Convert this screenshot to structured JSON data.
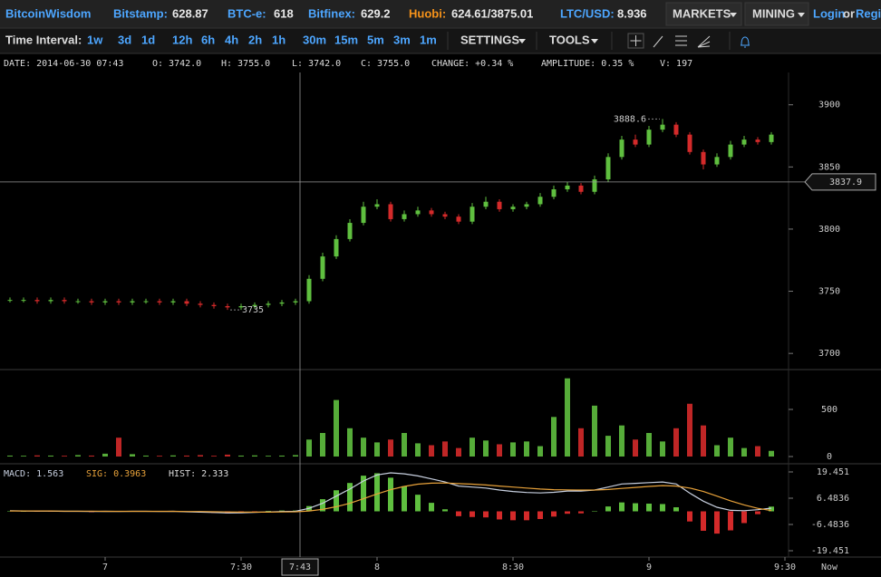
{
  "header": {
    "brand": "BitcoinWisdom",
    "tickers": [
      {
        "name": "Bitstamp:",
        "price": "628.87"
      },
      {
        "name": "BTC-e:",
        "price": "618"
      },
      {
        "name": "Bitfinex:",
        "price": "629.2"
      },
      {
        "name": "Huobi:",
        "price": "624.61/3875.01"
      },
      {
        "name": "LTC/USD:",
        "price": "8.936"
      }
    ],
    "menus": [
      "MARKETS",
      "MINING"
    ],
    "login": "Login",
    "or": "or",
    "register": "Regis"
  },
  "toolbar": {
    "label": "Time Interval:",
    "intervals": [
      "1w",
      "3d",
      "1d",
      "12h",
      "6h",
      "4h",
      "2h",
      "1h",
      "30m",
      "15m",
      "5m",
      "3m",
      "1m"
    ],
    "settings": "SETTINGS",
    "tools": "TOOLS"
  },
  "info": [
    "DATE: 2014-06-30 07:43",
    "O: 3742.0",
    "H: 3755.0",
    "L: 3742.0",
    "C: 3755.0",
    "CHANGE: +0.34 %",
    "AMPLITUDE: 0.35 %",
    "V: 197"
  ],
  "chart_data": [
    {
      "type": "candlestick",
      "up_color": "#5fbf3f",
      "down_color": "#d42a2a",
      "x": [
        399,
        402,
        405,
        408,
        411,
        414,
        417,
        420,
        423,
        426,
        429,
        432,
        435,
        438,
        441,
        444,
        447,
        450,
        453,
        456,
        459,
        462,
        465,
        468,
        471,
        474,
        477,
        480,
        483,
        486,
        489,
        492,
        495,
        498,
        501,
        504,
        507,
        510,
        513,
        516,
        519,
        522,
        525,
        528,
        531,
        534,
        537,
        540,
        543,
        546,
        549,
        552,
        555,
        558,
        561,
        564,
        567
      ],
      "open": [
        3743,
        3743,
        3743,
        3742,
        3743,
        3742,
        3742,
        3741,
        3742,
        3741,
        3742,
        3742,
        3741,
        3742,
        3740,
        3739,
        3738,
        3737,
        3738,
        3739,
        3740,
        3741,
        3742,
        3760,
        3778,
        3792,
        3805,
        3818,
        3820,
        3808,
        3812,
        3815,
        3812,
        3810,
        3806,
        3818,
        3822,
        3816,
        3818,
        3820,
        3826,
        3832,
        3835,
        3830,
        3840,
        3858,
        3872,
        3868,
        3880,
        3884,
        3876,
        3862,
        3852,
        3858,
        3868,
        3872,
        3870
      ],
      "high": [
        3745,
        3745,
        3745,
        3745,
        3745,
        3744,
        3744,
        3744,
        3744,
        3744,
        3744,
        3744,
        3744,
        3744,
        3742,
        3741,
        3740,
        3740,
        3741,
        3742,
        3743,
        3744,
        3763,
        3781,
        3795,
        3808,
        3822,
        3824,
        3822,
        3815,
        3818,
        3817,
        3814,
        3812,
        3821,
        3826,
        3824,
        3820,
        3822,
        3829,
        3835,
        3838,
        3837,
        3843,
        3861,
        3875,
        3876,
        3883,
        3888.6,
        3886,
        3878,
        3864,
        3861,
        3871,
        3875,
        3874,
        3878
      ],
      "low": [
        3741,
        3741,
        3740,
        3740,
        3740,
        3740,
        3739,
        3739,
        3739,
        3739,
        3740,
        3739,
        3739,
        3738,
        3737,
        3736,
        3735,
        3735,
        3736,
        3737,
        3738,
        3739,
        3740,
        3758,
        3776,
        3790,
        3803,
        3816,
        3806,
        3806,
        3810,
        3810,
        3808,
        3804,
        3804,
        3816,
        3814,
        3814,
        3816,
        3818,
        3824,
        3830,
        3828,
        3828,
        3838,
        3856,
        3866,
        3866,
        3878,
        3874,
        3860,
        3848,
        3850,
        3856,
        3866,
        3868,
        3868
      ],
      "close": [
        3743,
        3743,
        3742,
        3743,
        3742,
        3742,
        3741,
        3742,
        3741,
        3742,
        3742,
        3741,
        3742,
        3740,
        3739,
        3738,
        3737,
        3738,
        3739,
        3740,
        3741,
        3742,
        3760,
        3778,
        3792,
        3805,
        3818,
        3820,
        3808,
        3812,
        3815,
        3812,
        3810,
        3806,
        3818,
        3822,
        3816,
        3818,
        3820,
        3826,
        3832,
        3835,
        3830,
        3840,
        3858,
        3872,
        3868,
        3880,
        3884,
        3876,
        3862,
        3852,
        3858,
        3868,
        3872,
        3870,
        3876
      ],
      "max_label": "3888.6",
      "min_label": "3735",
      "ylim": [
        3687,
        3926
      ],
      "yticks": [
        3700,
        3750,
        3800,
        3850,
        3900
      ],
      "xlim": [
        396.8,
        570.8
      ],
      "xticks": [
        {
          "value": 420,
          "label": "7"
        },
        {
          "value": 450,
          "label": "7:30"
        },
        {
          "value": 480,
          "label": "8"
        },
        {
          "value": 510,
          "label": "8:30"
        },
        {
          "value": 540,
          "label": "9"
        },
        {
          "value": 570,
          "label": "9:30"
        }
      ],
      "now_label": "Now",
      "crosshair": {
        "price": 3837.9,
        "time": {
          "value": 463,
          "label": "7:43"
        }
      }
    },
    {
      "type": "bar",
      "values": [
        10,
        8,
        12,
        10,
        8,
        15,
        10,
        30,
        200,
        25,
        10,
        8,
        12,
        10,
        15,
        8,
        20,
        10,
        12,
        8,
        10,
        15,
        180,
        250,
        600,
        300,
        200,
        150,
        180,
        250,
        140,
        120,
        160,
        90,
        200,
        170,
        130,
        150,
        160,
        110,
        420,
        830,
        300,
        540,
        220,
        330,
        180,
        250,
        160,
        300,
        560,
        330,
        120,
        200,
        90,
        110,
        60
      ],
      "ylim": [
        -77,
        923
      ],
      "yticks": [
        0,
        500
      ]
    },
    {
      "type": "macd",
      "series": [
        {
          "name": "MACD:",
          "value_label": "1.563",
          "color": "#c8d0e0",
          "values": [
            0.3,
            0.2,
            0.1,
            0.1,
            0,
            0,
            -0.1,
            0,
            -0.1,
            0,
            0,
            -0.1,
            0,
            -0.2,
            -0.4,
            -0.6,
            -0.8,
            -0.7,
            -0.5,
            -0.3,
            -0.1,
            0,
            1.5,
            4,
            7.5,
            11,
            15,
            18,
            19,
            18.5,
            17.5,
            16,
            14.5,
            12.5,
            12,
            11.5,
            10.5,
            9.8,
            9.3,
            9.1,
            9.4,
            10,
            10,
            10.5,
            12,
            13.5,
            13.8,
            14.2,
            14.5,
            13.5,
            9,
            5,
            2,
            0.5,
            0.3,
            0.8,
            1.563
          ]
        },
        {
          "name": "SIG:",
          "value_label": "0.3963",
          "color": "#e8a23a",
          "values": [
            0.2,
            0.2,
            0.2,
            0.2,
            0.1,
            0.1,
            0.1,
            0,
            0,
            0,
            0,
            0,
            0,
            -0.1,
            -0.1,
            -0.2,
            -0.3,
            -0.4,
            -0.4,
            -0.4,
            -0.3,
            -0.2,
            0.2,
            1,
            2.3,
            4,
            6.2,
            8.6,
            10.7,
            12.3,
            13.4,
            13.9,
            14,
            13.7,
            13.4,
            13,
            12.5,
            12,
            11.5,
            11,
            10.7,
            10.6,
            10.5,
            10.5,
            10.8,
            11.3,
            11.8,
            12.3,
            12.7,
            12.5,
            11.5,
            9.8,
            7.5,
            5.2,
            3.2,
            1.5,
            0.3963
          ]
        },
        {
          "name": "HIST:",
          "value_label": "2.333",
          "color": "#dddddd",
          "values": [
            0.2,
            0,
            -0.2,
            -0.2,
            -0.2,
            -0.2,
            -0.4,
            0,
            -0.2,
            0,
            0,
            -0.2,
            0,
            -0.2,
            -0.6,
            -0.8,
            -1,
            -0.6,
            -0.2,
            0.2,
            0.4,
            0.4,
            2.6,
            6,
            10.4,
            14,
            17.6,
            18.8,
            16.6,
            12.4,
            8.2,
            4.2,
            1,
            -2.4,
            -2.8,
            -3,
            -4,
            -4.4,
            -4.4,
            -3.8,
            -2.6,
            -1.2,
            -1,
            0,
            2.4,
            4.4,
            4,
            3.8,
            3.6,
            2,
            -5,
            -9.6,
            -11,
            -9.4,
            -5.8,
            -1.4,
            2.333
          ]
        }
      ],
      "ylim": [
        -22.58,
        23.48
      ],
      "yticks": [
        -19.451,
        -6.4836,
        6.4836,
        19.451
      ]
    }
  ]
}
